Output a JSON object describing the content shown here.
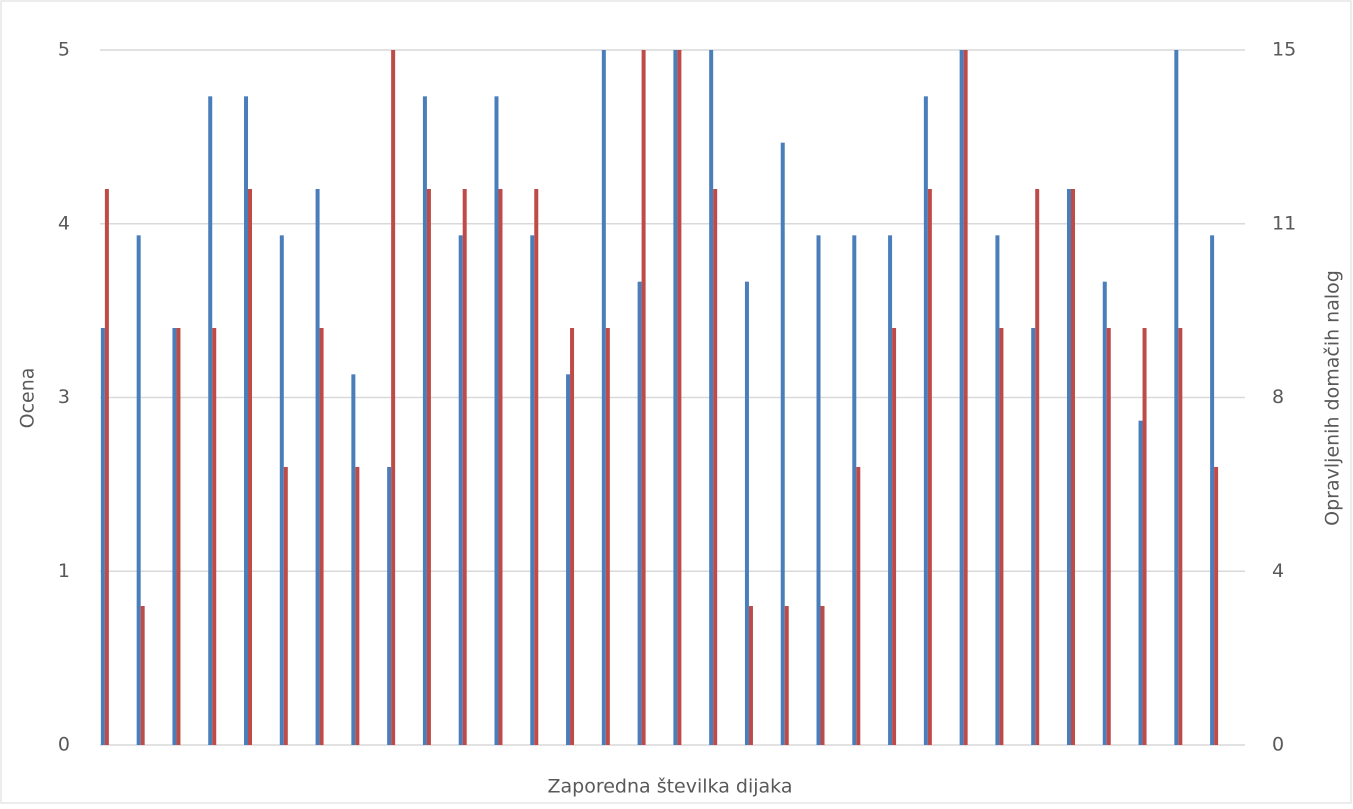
{
  "chart_data": {
    "type": "bar",
    "xlabel": "Zaporedna številka dijaka",
    "ylabel": "Ocena",
    "y2label": "Opravljenih domačih nalog",
    "categories": [
      null,
      null,
      null,
      null,
      null,
      null,
      null,
      null,
      null,
      null,
      null,
      null,
      null,
      null,
      null,
      null,
      null,
      null,
      null,
      null,
      null,
      null,
      null,
      null,
      null,
      null,
      null,
      null,
      null,
      null,
      null,
      null
    ],
    "series": [
      {
        "color": "#4a7ebb",
        "axis": "y2",
        "values": [
          9,
          11,
          9,
          14,
          14,
          11,
          12,
          8,
          6,
          14,
          11,
          14,
          11,
          8,
          15,
          10,
          15,
          15,
          10,
          13,
          11,
          11,
          11,
          14,
          15,
          11,
          9,
          12,
          10,
          7,
          15,
          11
        ]
      },
      {
        "color": "#be4b48",
        "values": [
          4,
          1,
          3,
          3,
          4,
          2,
          3,
          2,
          5,
          4,
          4,
          4,
          4,
          3,
          3,
          5,
          5,
          4,
          1,
          1,
          1,
          2,
          3,
          4,
          5,
          3,
          4,
          4,
          3,
          3,
          3,
          2
        ]
      }
    ],
    "ylim": [
      0,
      5
    ],
    "yticks": [
      0,
      {
        "value": 1.25,
        "label": "1"
      },
      {
        "value": 2.5,
        "label": "3"
      },
      {
        "value": 3.75,
        "label": "4"
      },
      5
    ],
    "y2lim": [
      0,
      15
    ],
    "y2ticks": [
      0,
      {
        "value": 3.75,
        "label": "4"
      },
      {
        "value": 7.5,
        "label": "8"
      },
      {
        "value": 11.25,
        "label": "11"
      },
      15
    ],
    "grid": true
  }
}
